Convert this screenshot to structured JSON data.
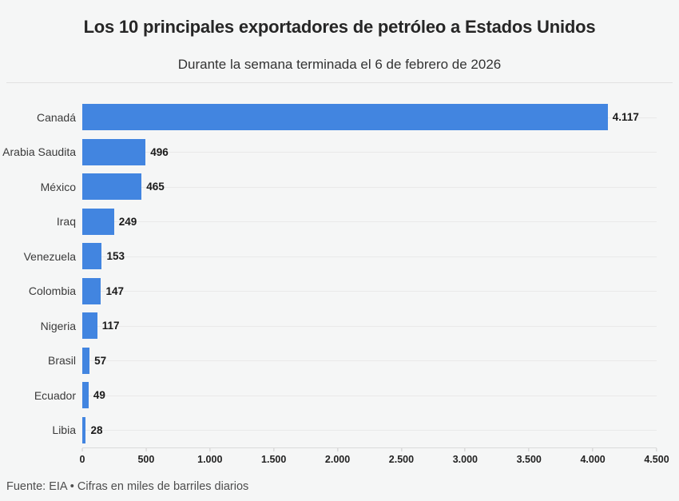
{
  "header": {
    "title": "Los 10 principales exportadores de petróleo a Estados Unidos",
    "subtitle": "Durante la semana terminada el 6 de febrero de 2026"
  },
  "chart_data": {
    "type": "bar",
    "orientation": "horizontal",
    "title": "Los 10 principales exportadores de petróleo a Estados Unidos",
    "subtitle": "Durante la semana terminada el 6 de febrero de 2026",
    "categories": [
      "Canadá",
      "Arabia Saudita",
      "México",
      "Iraq",
      "Venezuela",
      "Colombia",
      "Nigeria",
      "Brasil",
      "Ecuador",
      "Libia"
    ],
    "values": [
      4117,
      496,
      465,
      249,
      153,
      147,
      117,
      57,
      49,
      28
    ],
    "value_labels": [
      "4.117",
      "496",
      "465",
      "249",
      "153",
      "147",
      "117",
      "57",
      "49",
      "28"
    ],
    "xlim": [
      0,
      4500
    ],
    "x_tick_labels": [
      "0",
      "500",
      "1.000",
      "1.500",
      "2.000",
      "2.500",
      "3.000",
      "3.500",
      "4.000",
      "4.500"
    ],
    "xlabel": "",
    "ylabel": "",
    "bar_color": "#4285e0",
    "grid": true,
    "legend": false
  },
  "footer": {
    "source": "Fuente: EIA • Cifras en miles de barriles diarios"
  }
}
